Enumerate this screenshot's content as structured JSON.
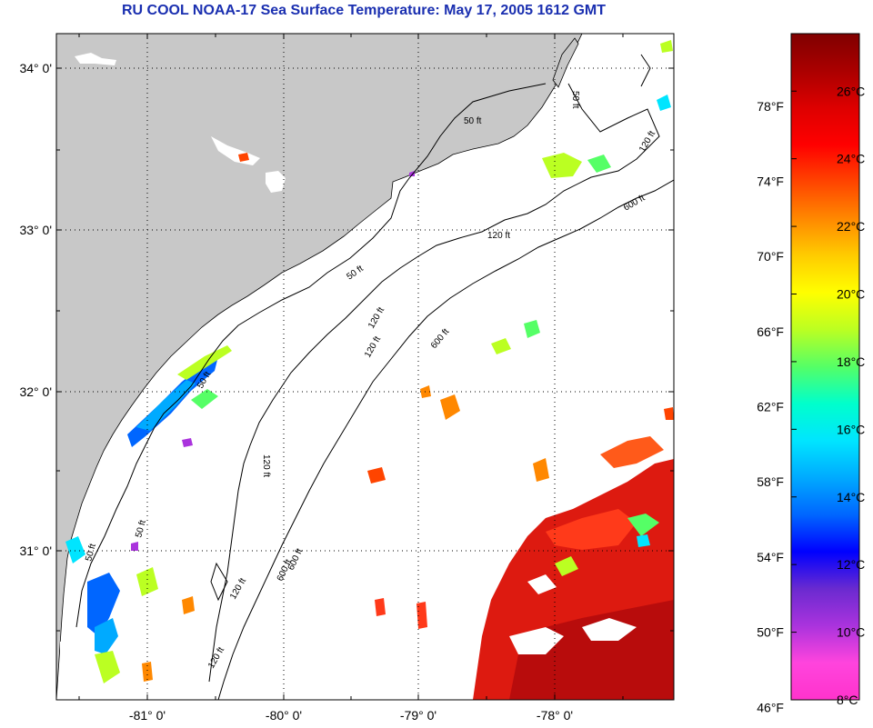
{
  "title": "RU COOL  NOAA-17  Sea Surface Temperature:  May 17, 2005 1612 GMT",
  "latitude_labels": [
    "34° 0'",
    "33° 0'",
    "32° 0'",
    "31° 0'"
  ],
  "longitude_labels": [
    "-81° 0'",
    "-80° 0'",
    "-79° 0'",
    "-78° 0'"
  ],
  "contour_labels": [
    "50 ft",
    "50 ft",
    "120 ft",
    "600 ft",
    "50 ft",
    "120 ft",
    "600 ft",
    "120 ft",
    "600 ft",
    "50 ft",
    "50 ft",
    "120 ft",
    "50 ft",
    "120 ft",
    "600 ft",
    "120 ft",
    "120 ft"
  ],
  "colorbar": {
    "fahrenheit_labels": [
      "78°F",
      "74°F",
      "70°F",
      "66°F",
      "62°F",
      "58°F",
      "54°F",
      "50°F",
      "46°F"
    ],
    "celsius_labels": [
      "26°C",
      "24°C",
      "22°C",
      "20°C",
      "18°C",
      "16°C",
      "14°C",
      "12°C",
      "10°C",
      "8°C"
    ],
    "colors": [
      "#ff33cc",
      "#ff44dd",
      "#aa33dd",
      "#6a2ad0",
      "#0000ff",
      "#0066ff",
      "#00aaff",
      "#00e5ff",
      "#00ffcc",
      "#55ff66",
      "#bbff22",
      "#ffff00",
      "#ffcc00",
      "#ff8800",
      "#ff4400",
      "#ff0000",
      "#dd0000",
      "#aa0000",
      "#800000"
    ]
  },
  "colors": {
    "land": "#c8c8c8",
    "water": "#ffffff",
    "title": "#1a2fb0",
    "warm_core": "#dd1a10",
    "warm_edge": "#ff3a1a",
    "hot_core": "#b80c0c"
  }
}
